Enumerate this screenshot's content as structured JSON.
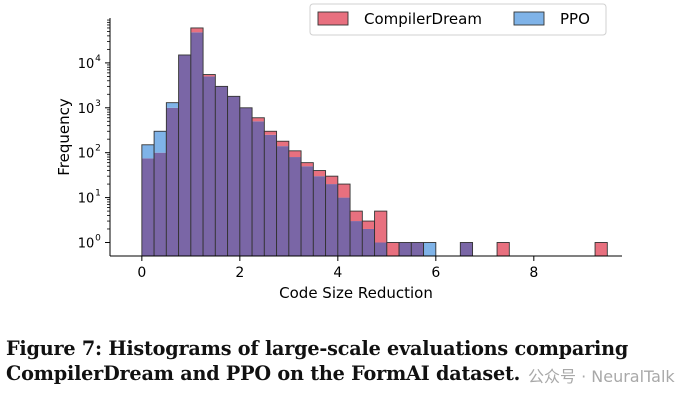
{
  "chart_data": {
    "type": "bar",
    "xlabel": "Code Size Reduction",
    "ylabel": "Frequency",
    "x_scale": "linear",
    "y_scale": "log",
    "xlim": [
      -0.65,
      9.8
    ],
    "ylim": [
      0.5,
      100000
    ],
    "x_ticks": [
      0,
      2,
      4,
      6,
      8
    ],
    "y_ticks": [
      {
        "value": 1,
        "base": "10",
        "exp": "0"
      },
      {
        "value": 10,
        "base": "10",
        "exp": "1"
      },
      {
        "value": 100,
        "base": "10",
        "exp": "2"
      },
      {
        "value": 1000,
        "base": "10",
        "exp": "3"
      },
      {
        "value": 10000,
        "base": "10",
        "exp": "4"
      }
    ],
    "legend_position": "top-right",
    "colors": {
      "CompilerDream": "#e8707f",
      "PPO": "#7fb3e8",
      "overlap": "#7a66a6",
      "edge": "#333333"
    },
    "series": [
      {
        "name": "CompilerDream",
        "bins": [
          {
            "x0": 0.0,
            "x1": 0.25,
            "count": 75
          },
          {
            "x0": 0.25,
            "x1": 0.5,
            "count": 100
          },
          {
            "x0": 0.5,
            "x1": 0.75,
            "count": 1000
          },
          {
            "x0": 0.75,
            "x1": 1.0,
            "count": 15000
          },
          {
            "x0": 1.0,
            "x1": 1.25,
            "count": 60000
          },
          {
            "x0": 1.25,
            "x1": 1.5,
            "count": 5500
          },
          {
            "x0": 1.5,
            "x1": 1.75,
            "count": 3000
          },
          {
            "x0": 1.75,
            "x1": 2.0,
            "count": 1800
          },
          {
            "x0": 2.0,
            "x1": 2.25,
            "count": 1000
          },
          {
            "x0": 2.25,
            "x1": 2.5,
            "count": 600
          },
          {
            "x0": 2.5,
            "x1": 2.75,
            "count": 300
          },
          {
            "x0": 2.75,
            "x1": 3.0,
            "count": 180
          },
          {
            "x0": 3.0,
            "x1": 3.25,
            "count": 110
          },
          {
            "x0": 3.25,
            "x1": 3.5,
            "count": 60
          },
          {
            "x0": 3.5,
            "x1": 3.75,
            "count": 40
          },
          {
            "x0": 3.75,
            "x1": 4.0,
            "count": 30
          },
          {
            "x0": 4.0,
            "x1": 4.25,
            "count": 20
          },
          {
            "x0": 4.25,
            "x1": 4.5,
            "count": 5
          },
          {
            "x0": 4.5,
            "x1": 4.75,
            "count": 3
          },
          {
            "x0": 4.75,
            "x1": 5.0,
            "count": 5
          },
          {
            "x0": 5.0,
            "x1": 5.25,
            "count": 1
          },
          {
            "x0": 5.25,
            "x1": 5.5,
            "count": 1
          },
          {
            "x0": 5.5,
            "x1": 5.75,
            "count": 1
          },
          {
            "x0": 6.5,
            "x1": 6.75,
            "count": 1
          },
          {
            "x0": 7.25,
            "x1": 7.5,
            "count": 1
          },
          {
            "x0": 9.25,
            "x1": 9.5,
            "count": 1
          }
        ]
      },
      {
        "name": "PPO",
        "bins": [
          {
            "x0": 0.0,
            "x1": 0.25,
            "count": 150
          },
          {
            "x0": 0.25,
            "x1": 0.5,
            "count": 300
          },
          {
            "x0": 0.5,
            "x1": 0.75,
            "count": 1300
          },
          {
            "x0": 0.75,
            "x1": 1.0,
            "count": 15000
          },
          {
            "x0": 1.0,
            "x1": 1.25,
            "count": 48000
          },
          {
            "x0": 1.25,
            "x1": 1.5,
            "count": 5000
          },
          {
            "x0": 1.5,
            "x1": 1.75,
            "count": 3000
          },
          {
            "x0": 1.75,
            "x1": 2.0,
            "count": 1800
          },
          {
            "x0": 2.0,
            "x1": 2.25,
            "count": 1000
          },
          {
            "x0": 2.25,
            "x1": 2.5,
            "count": 500
          },
          {
            "x0": 2.5,
            "x1": 2.75,
            "count": 250
          },
          {
            "x0": 2.75,
            "x1": 3.0,
            "count": 140
          },
          {
            "x0": 3.0,
            "x1": 3.25,
            "count": 80
          },
          {
            "x0": 3.25,
            "x1": 3.5,
            "count": 50
          },
          {
            "x0": 3.5,
            "x1": 3.75,
            "count": 30
          },
          {
            "x0": 3.75,
            "x1": 4.0,
            "count": 20
          },
          {
            "x0": 4.0,
            "x1": 4.25,
            "count": 10
          },
          {
            "x0": 4.25,
            "x1": 4.5,
            "count": 3
          },
          {
            "x0": 4.5,
            "x1": 4.75,
            "count": 2
          },
          {
            "x0": 4.75,
            "x1": 5.0,
            "count": 1
          },
          {
            "x0": 5.25,
            "x1": 5.5,
            "count": 1
          },
          {
            "x0": 5.5,
            "x1": 5.75,
            "count": 1
          },
          {
            "x0": 5.75,
            "x1": 6.0,
            "count": 1
          },
          {
            "x0": 6.5,
            "x1": 6.75,
            "count": 1
          }
        ]
      }
    ]
  },
  "caption": {
    "line1": "Figure 7: Histograms of large-scale evaluations comparing",
    "line2": "CompilerDream and PPO on the FormAI dataset."
  },
  "watermark": "公众号 · NeuralTalk"
}
